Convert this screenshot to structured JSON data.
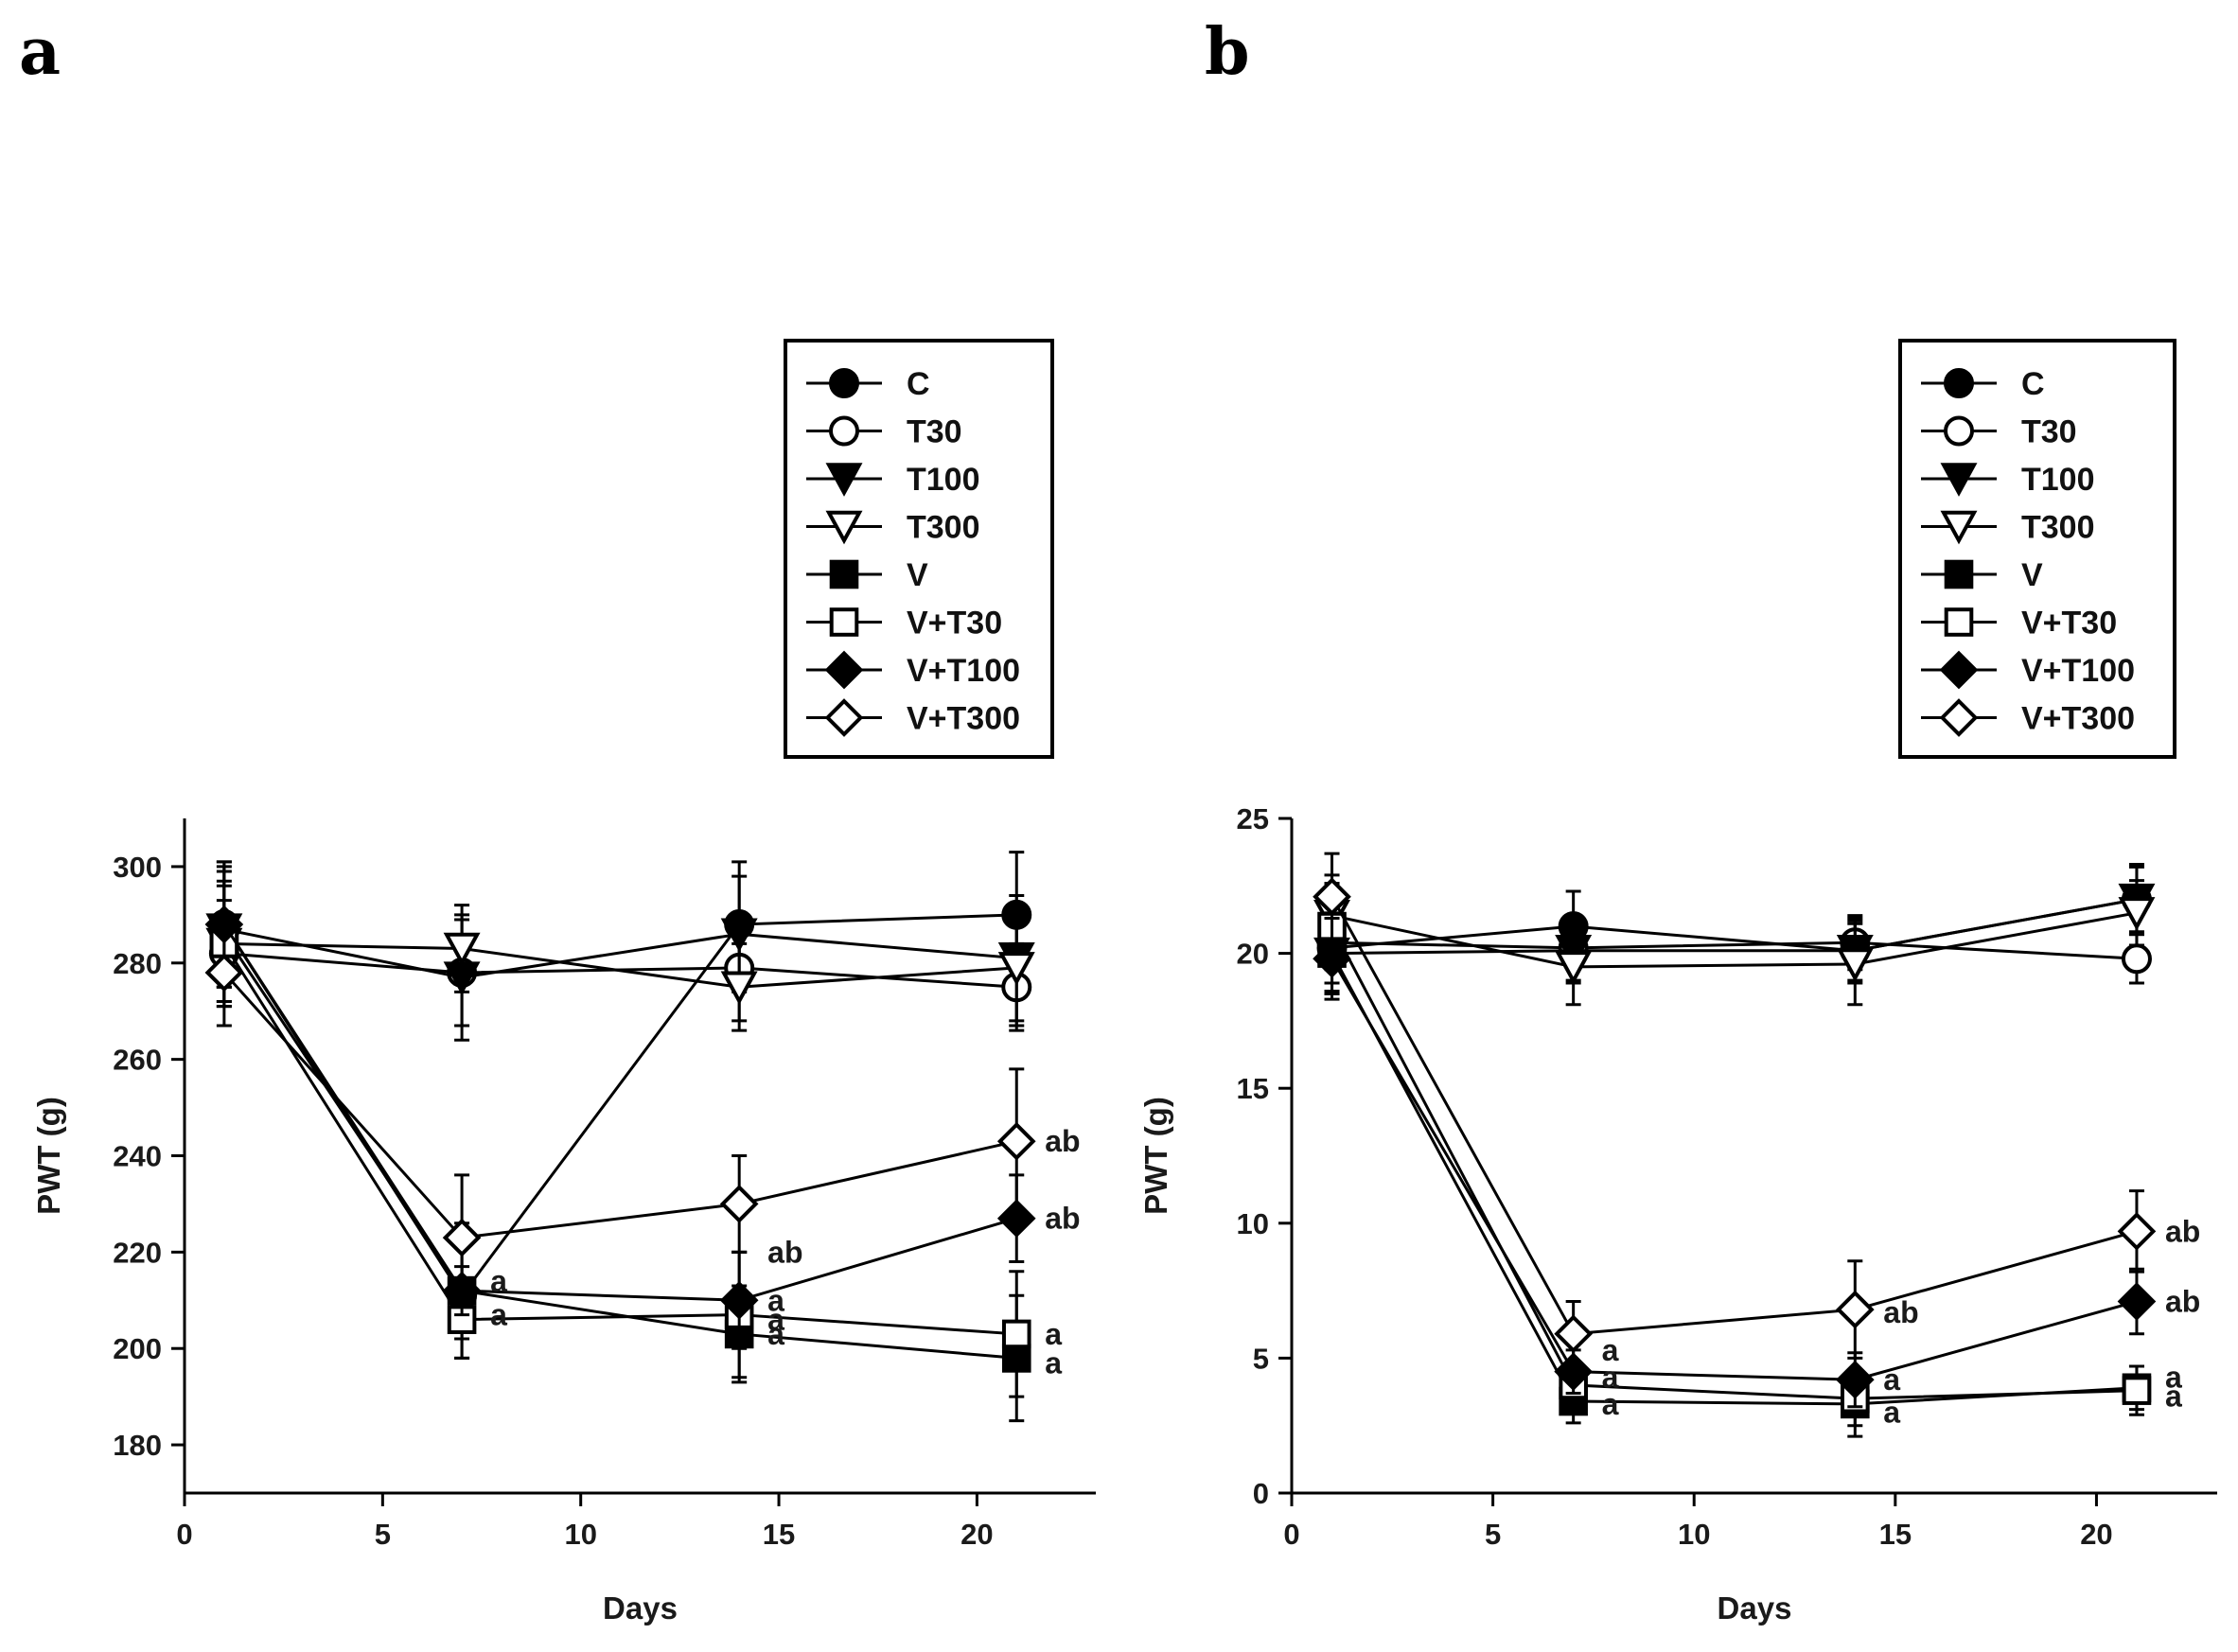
{
  "figure": {
    "panel_letters": [
      "a",
      "b"
    ]
  },
  "chart_data": [
    {
      "type": "line",
      "panel": "a",
      "xlabel": "Days",
      "ylabel": "PWT (g)",
      "xlim": [
        0,
        23
      ],
      "ylim": [
        170,
        310
      ],
      "x_ticks": [
        0,
        5,
        10,
        15,
        20
      ],
      "y_ticks": [
        180,
        200,
        220,
        240,
        260,
        280,
        300
      ],
      "x": [
        1,
        7,
        14,
        21
      ],
      "legend_position": "top-right",
      "series": [
        {
          "name": "C",
          "marker": "circle",
          "fill": "black",
          "values": [
            288,
            211,
            288,
            290
          ],
          "errors": [
            13,
            13,
            13,
            13
          ]
        },
        {
          "name": "T30",
          "marker": "circle",
          "fill": "white",
          "values": [
            282,
            278,
            279,
            275
          ],
          "errors": [
            11,
            11,
            11,
            9
          ]
        },
        {
          "name": "T100",
          "marker": "triangle-down",
          "fill": "black",
          "values": [
            287,
            277,
            286,
            281
          ],
          "errors": [
            12,
            13,
            12,
            13
          ]
        },
        {
          "name": "T300",
          "marker": "triangle-down",
          "fill": "white",
          "values": [
            284,
            283,
            275,
            279
          ],
          "errors": [
            12,
            9,
            9,
            12
          ]
        },
        {
          "name": "V",
          "marker": "square",
          "fill": "black",
          "values": [
            286,
            212,
            203,
            198
          ],
          "errors": [
            14,
            14,
            10,
            13
          ]
        },
        {
          "name": "V+T30",
          "marker": "square",
          "fill": "white",
          "values": [
            284,
            206,
            207,
            203
          ],
          "errors": [
            13,
            4,
            13,
            13
          ]
        },
        {
          "name": "V+T100",
          "marker": "diamond",
          "fill": "black",
          "values": [
            288,
            212,
            210,
            227
          ],
          "errors": [
            13,
            5,
            10,
            9
          ]
        },
        {
          "name": "V+T300",
          "marker": "diamond",
          "fill": "white",
          "values": [
            278,
            223,
            230,
            243
          ],
          "errors": [
            11,
            13,
            10,
            15
          ]
        }
      ],
      "annotations": [
        {
          "x": 7,
          "y": 214,
          "text": "a"
        },
        {
          "x": 7,
          "y": 207,
          "text": "a"
        },
        {
          "x": 14,
          "y": 220,
          "text": "ab"
        },
        {
          "x": 14,
          "y": 210,
          "text": "a"
        },
        {
          "x": 14,
          "y": 206,
          "text": "a"
        },
        {
          "x": 14,
          "y": 203,
          "text": "a"
        },
        {
          "x": 21,
          "y": 243,
          "text": "ab"
        },
        {
          "x": 21,
          "y": 227,
          "text": "ab"
        },
        {
          "x": 21,
          "y": 203,
          "text": "a"
        },
        {
          "x": 21,
          "y": 197,
          "text": "a"
        }
      ]
    },
    {
      "type": "line",
      "panel": "b",
      "xlabel": "Days",
      "ylabel": "PWT (g)",
      "xlim": [
        0,
        23
      ],
      "ylim": [
        0,
        25
      ],
      "x_ticks": [
        0,
        5,
        10,
        15,
        20
      ],
      "y_ticks": [
        0,
        5,
        10,
        15,
        20,
        25
      ],
      "x": [
        1,
        7,
        14,
        21
      ],
      "legend_position": "top-right",
      "series": [
        {
          "name": "C",
          "marker": "circle",
          "fill": "black",
          "values": [
            20.2,
            21.0,
            20.1,
            22.0
          ],
          "errors": [
            1.6,
            1.3,
            1.2,
            1.2
          ]
        },
        {
          "name": "T30",
          "marker": "circle",
          "fill": "white",
          "values": [
            20.4,
            20.2,
            20.4,
            19.8
          ],
          "errors": [
            1.5,
            1.2,
            1.0,
            0.9
          ]
        },
        {
          "name": "T100",
          "marker": "triangle-down",
          "fill": "black",
          "values": [
            20.0,
            20.1,
            20.1,
            22.0
          ],
          "errors": [
            1.5,
            1.2,
            1.1,
            1.3
          ]
        },
        {
          "name": "T300",
          "marker": "triangle-down",
          "fill": "white",
          "values": [
            21.4,
            19.5,
            19.6,
            21.5
          ],
          "errors": [
            1.5,
            1.4,
            1.5,
            1.2
          ]
        },
        {
          "name": "V",
          "marker": "square",
          "fill": "black",
          "values": [
            20.0,
            3.4,
            3.3,
            3.9
          ],
          "errors": [
            1.5,
            0.8,
            1.2,
            0.8
          ]
        },
        {
          "name": "V+T30",
          "marker": "square",
          "fill": "white",
          "values": [
            21.0,
            4.0,
            3.5,
            3.8
          ],
          "errors": [
            1.6,
            0.8,
            1.0,
            0.9
          ]
        },
        {
          "name": "V+T100",
          "marker": "diamond",
          "fill": "black",
          "values": [
            19.8,
            4.5,
            4.2,
            7.1
          ],
          "errors": [
            1.5,
            0.8,
            1.0,
            1.2
          ]
        },
        {
          "name": "V+T300",
          "marker": "diamond",
          "fill": "white",
          "values": [
            22.1,
            5.9,
            6.8,
            9.7
          ],
          "errors": [
            1.6,
            1.2,
            1.8,
            1.5
          ]
        }
      ],
      "annotations": [
        {
          "x": 7,
          "y": 5.3,
          "text": "a"
        },
        {
          "x": 7,
          "y": 4.3,
          "text": "a"
        },
        {
          "x": 7,
          "y": 3.3,
          "text": "a"
        },
        {
          "x": 14,
          "y": 6.7,
          "text": "ab"
        },
        {
          "x": 14,
          "y": 4.2,
          "text": "a"
        },
        {
          "x": 14,
          "y": 3.0,
          "text": "a"
        },
        {
          "x": 21,
          "y": 9.7,
          "text": "ab"
        },
        {
          "x": 21,
          "y": 7.1,
          "text": "ab"
        },
        {
          "x": 21,
          "y": 4.3,
          "text": "a"
        },
        {
          "x": 21,
          "y": 3.6,
          "text": "a"
        }
      ]
    }
  ]
}
